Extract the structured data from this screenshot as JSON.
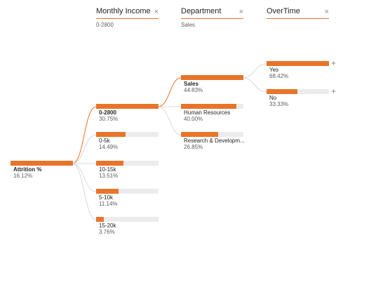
{
  "levels": [
    {
      "title": "Monthly Income",
      "filter": "0-2800"
    },
    {
      "title": "Department",
      "filter": "Sales"
    },
    {
      "title": "OverTime",
      "filter": ""
    }
  ],
  "close_glyph": "×",
  "expand_glyph": "+",
  "root": {
    "label": "Attrition %",
    "value": "16.12%",
    "fraction": 1.0
  },
  "income_nodes": [
    {
      "label": "0-2800",
      "value": "30.75%",
      "fraction": 1.0
    },
    {
      "label": "0-5k",
      "value": "14.49%",
      "fraction": 0.47
    },
    {
      "label": "10-15k",
      "value": "13.51%",
      "fraction": 0.44
    },
    {
      "label": "5-10k",
      "value": "11.14%",
      "fraction": 0.36
    },
    {
      "label": "15-20k",
      "value": "3.76%",
      "fraction": 0.12
    }
  ],
  "department_nodes": [
    {
      "label": "Sales",
      "value": "44.83%",
      "fraction": 1.0
    },
    {
      "label": "Human Resources",
      "value": "40.00%",
      "fraction": 0.89
    },
    {
      "label": "Research & Developm...",
      "value": "26.85%",
      "fraction": 0.6
    }
  ],
  "overtime_nodes": [
    {
      "label": "Yes",
      "value": "68.42%",
      "fraction": 1.0
    },
    {
      "label": "No",
      "value": "33.33%",
      "fraction": 0.49
    }
  ],
  "colors": {
    "accent": "#e8742a",
    "track": "#ececec",
    "connector": "#d9d9d9"
  }
}
